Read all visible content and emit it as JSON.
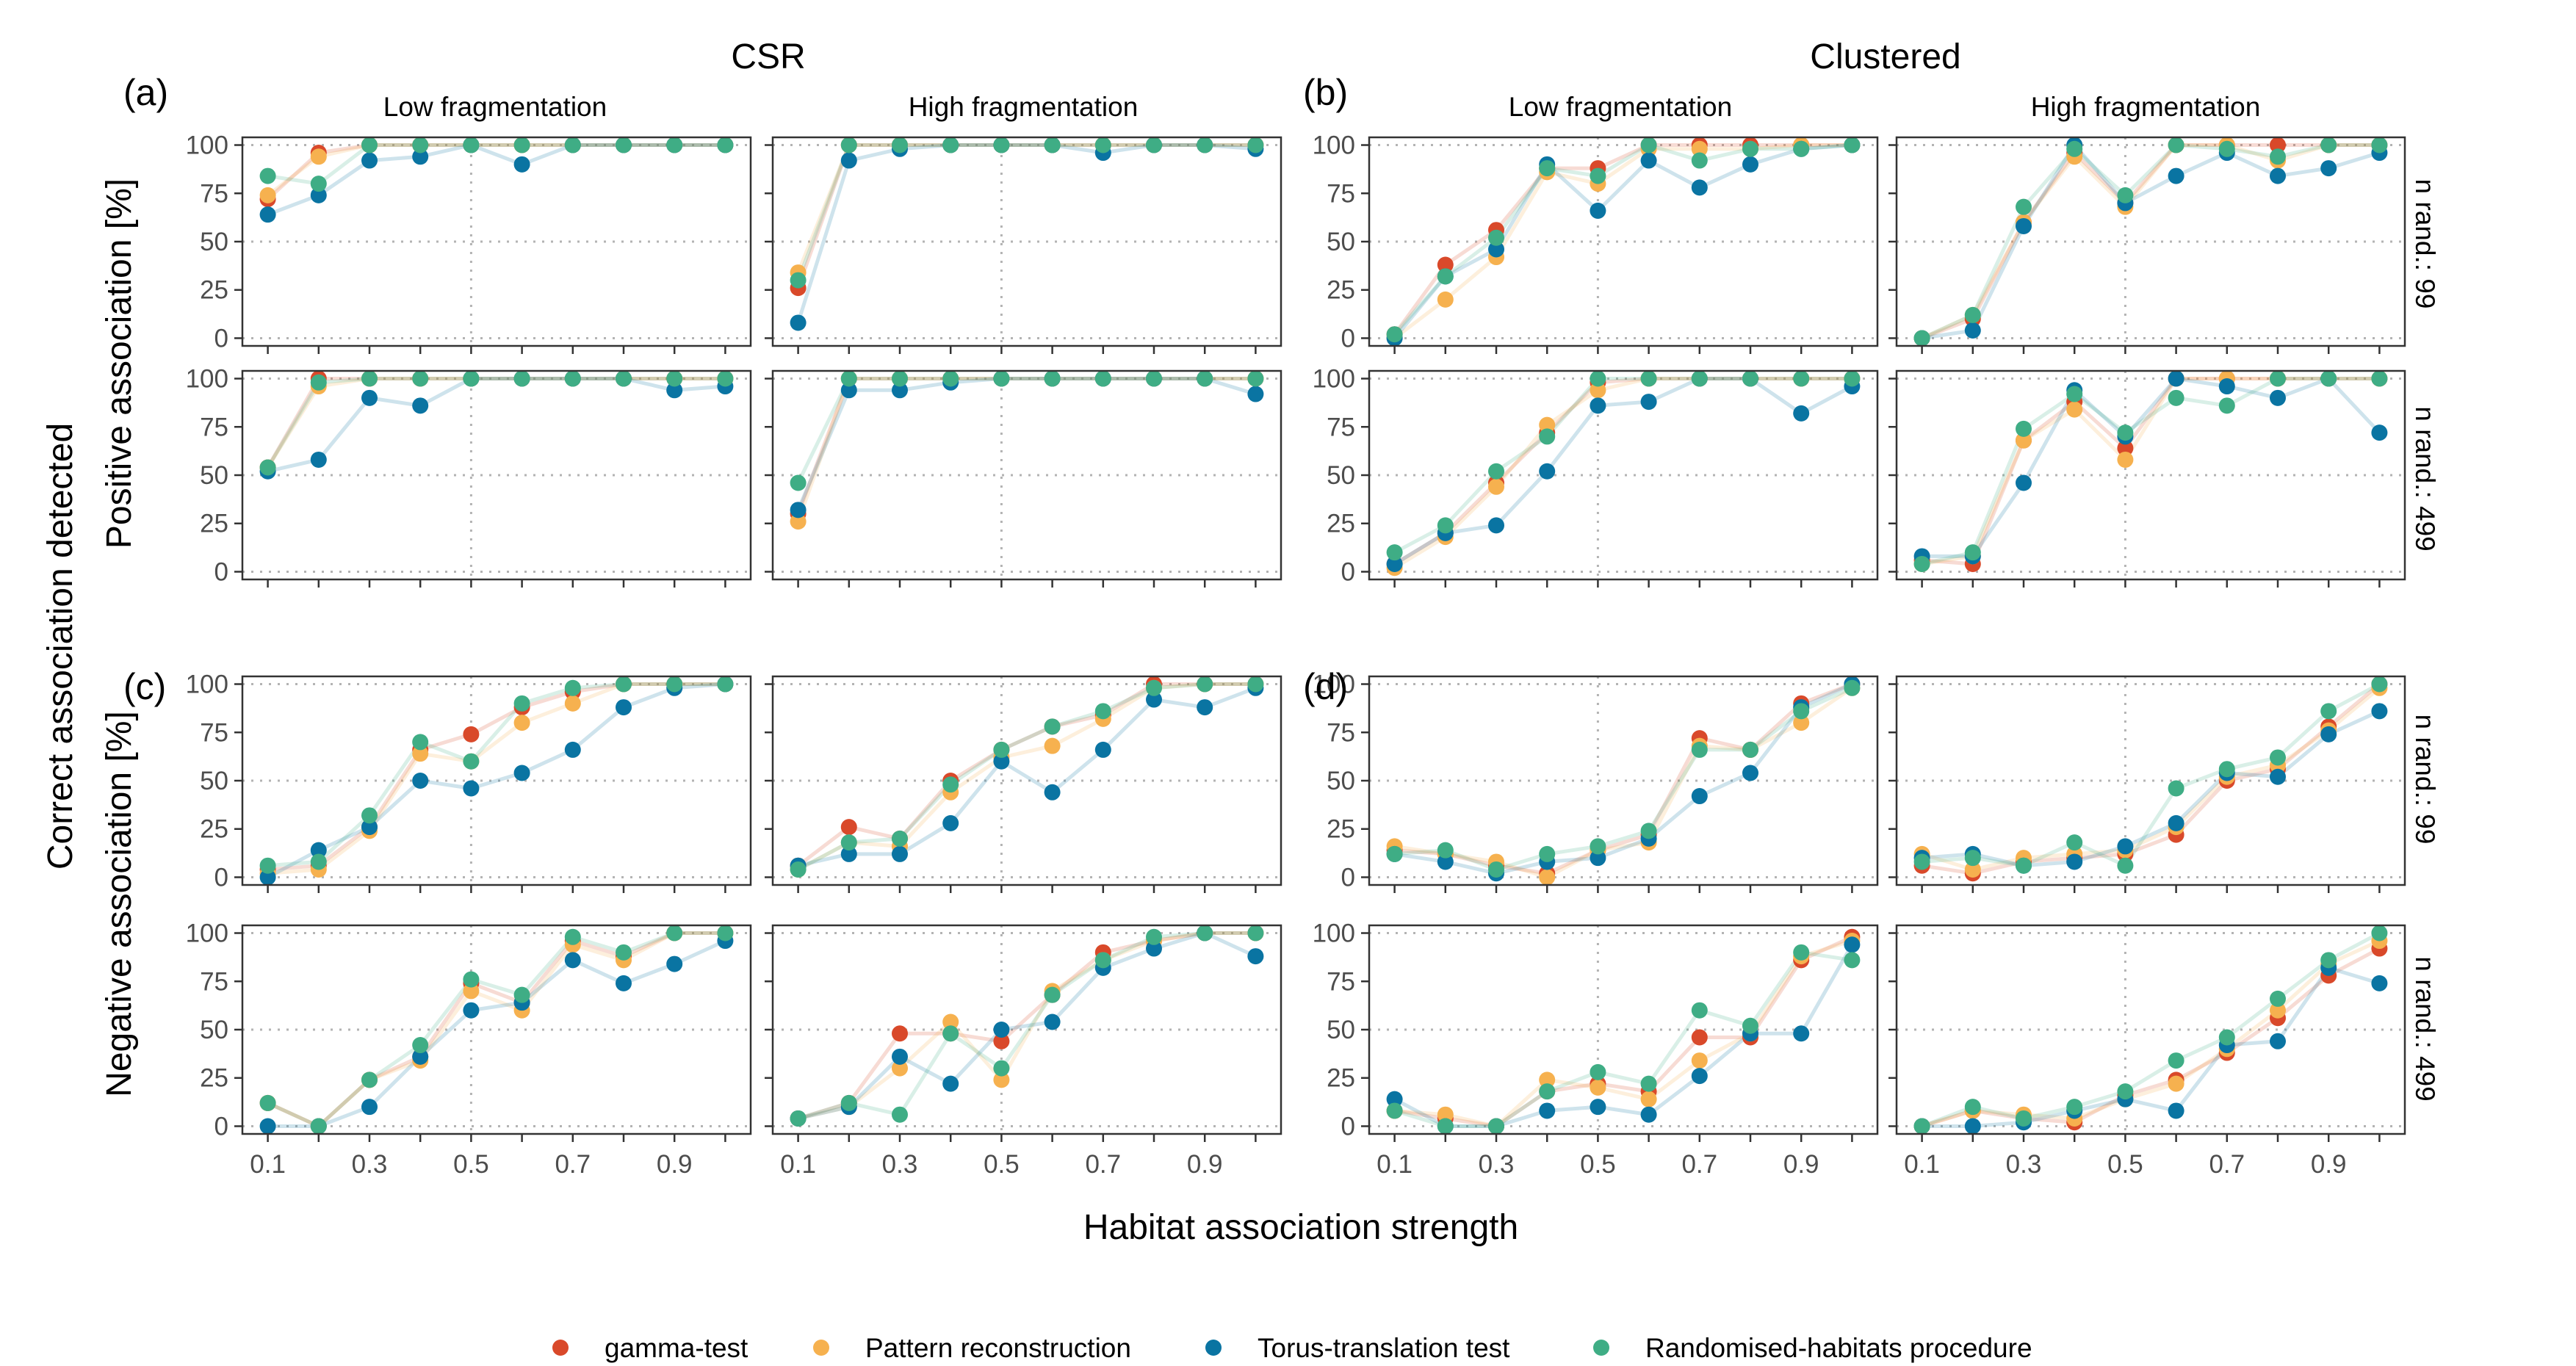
{
  "figure": {
    "xlabel": "Habitat association strength",
    "ylabel_outer": "Correct association detected",
    "col_groups": [
      "CSR",
      "Clustered"
    ],
    "col_titles": [
      "Low fragmentation",
      "High fragmentation",
      "Low fragmentation",
      "High fragmentation"
    ],
    "row_group_labels": [
      "Positive association [%]",
      "Negative association [%]"
    ],
    "strip_labels": [
      "n rand.: 99",
      "n rand.: 499",
      "n rand.: 99",
      "n rand.: 499"
    ],
    "panel_tags": [
      "(a)",
      "(b)",
      "(c)",
      "(d)"
    ],
    "x_ticks": [
      "0.1",
      "0.3",
      "0.5",
      "0.7",
      "0.9"
    ],
    "y_ticks": [
      "0",
      "25",
      "50",
      "75",
      "100"
    ],
    "legend": [
      {
        "label": "gamma-test",
        "color": "#D9492A"
      },
      {
        "label": "Pattern reconstruction",
        "color": "#F6B14F"
      },
      {
        "label": "Torus-translation test",
        "color": "#0A74A2"
      },
      {
        "label": "Randomised-habitats procedure",
        "color": "#3FAD85"
      }
    ]
  },
  "chart_data": {
    "type": "scatter",
    "x": [
      0.1,
      0.2,
      0.3,
      0.4,
      0.5,
      0.6,
      0.7,
      0.8,
      0.9,
      1.0
    ],
    "xlim": [
      0.05,
      1.05
    ],
    "ylim": [
      -4,
      104
    ],
    "grid": "dotted at y=0,50,100 and x=0.5",
    "legend_position": "bottom",
    "series_names": [
      "gamma-test",
      "Pattern reconstruction",
      "Torus-translation test",
      "Randomised-habitats procedure"
    ],
    "panels": [
      {
        "row": 0,
        "col": 0,
        "association": "Positive association [%]",
        "n_rand": "n rand.: 99",
        "pattern": "CSR",
        "fragmentation": "Low fragmentation",
        "series": [
          [
            72,
            96,
            100,
            100,
            100,
            100,
            100,
            100,
            100,
            100
          ],
          [
            74,
            94,
            100,
            100,
            100,
            100,
            100,
            100,
            100,
            100
          ],
          [
            64,
            74,
            92,
            94,
            100,
            90,
            100,
            100,
            100,
            100
          ],
          [
            84,
            80,
            100,
            100,
            100,
            100,
            100,
            100,
            100,
            100
          ]
        ]
      },
      {
        "row": 0,
        "col": 1,
        "association": "Positive association [%]",
        "n_rand": "n rand.: 99",
        "pattern": "CSR",
        "fragmentation": "High fragmentation",
        "series": [
          [
            26,
            100,
            100,
            100,
            100,
            100,
            100,
            100,
            100,
            100
          ],
          [
            34,
            100,
            100,
            100,
            100,
            100,
            100,
            100,
            100,
            100
          ],
          [
            8,
            92,
            98,
            100,
            100,
            100,
            96,
            100,
            100,
            98
          ],
          [
            30,
            100,
            100,
            100,
            100,
            100,
            100,
            100,
            100,
            100
          ]
        ]
      },
      {
        "row": 0,
        "col": 2,
        "association": "Positive association [%]",
        "n_rand": "n rand.: 99",
        "pattern": "Clustered",
        "fragmentation": "Low fragmentation",
        "series": [
          [
            2,
            38,
            56,
            88,
            88,
            100,
            100,
            100,
            100,
            100
          ],
          [
            0,
            20,
            42,
            86,
            80,
            98,
            98,
            98,
            100,
            100
          ],
          [
            0,
            32,
            46,
            90,
            66,
            92,
            78,
            90,
            98,
            100
          ],
          [
            2,
            32,
            52,
            88,
            84,
            100,
            92,
            98,
            98,
            100
          ]
        ]
      },
      {
        "row": 0,
        "col": 3,
        "association": "Positive association [%]",
        "n_rand": "n rand.: 99",
        "pattern": "Clustered",
        "fragmentation": "High fragmentation",
        "series": [
          [
            0,
            10,
            60,
            96,
            70,
            100,
            100,
            100,
            100,
            100
          ],
          [
            0,
            12,
            60,
            94,
            68,
            100,
            100,
            92,
            100,
            100
          ],
          [
            0,
            4,
            58,
            100,
            70,
            84,
            96,
            84,
            88,
            96
          ],
          [
            0,
            12,
            68,
            98,
            74,
            100,
            98,
            94,
            100,
            100
          ]
        ]
      },
      {
        "row": 1,
        "col": 0,
        "association": "Positive association [%]",
        "n_rand": "n rand.: 499",
        "pattern": "CSR",
        "fragmentation": "Low fragmentation",
        "series": [
          [
            54,
            100,
            100,
            100,
            100,
            100,
            100,
            100,
            100,
            100
          ],
          [
            54,
            96,
            100,
            100,
            100,
            100,
            100,
            100,
            100,
            100
          ],
          [
            52,
            58,
            90,
            86,
            100,
            100,
            100,
            100,
            94,
            96
          ],
          [
            54,
            98,
            100,
            100,
            100,
            100,
            100,
            100,
            100,
            100
          ]
        ]
      },
      {
        "row": 1,
        "col": 1,
        "association": "Positive association [%]",
        "n_rand": "n rand.: 499",
        "pattern": "CSR",
        "fragmentation": "High fragmentation",
        "series": [
          [
            30,
            100,
            100,
            100,
            100,
            100,
            100,
            100,
            100,
            100
          ],
          [
            26,
            100,
            100,
            100,
            100,
            100,
            100,
            100,
            100,
            100
          ],
          [
            32,
            94,
            94,
            98,
            100,
            100,
            100,
            100,
            100,
            92
          ],
          [
            46,
            100,
            100,
            100,
            100,
            100,
            100,
            100,
            100,
            100
          ]
        ]
      },
      {
        "row": 1,
        "col": 2,
        "association": "Positive association [%]",
        "n_rand": "n rand.: 499",
        "pattern": "Clustered",
        "fragmentation": "Low fragmentation",
        "series": [
          [
            4,
            20,
            46,
            72,
            98,
            100,
            100,
            100,
            100,
            100
          ],
          [
            2,
            18,
            44,
            76,
            94,
            100,
            100,
            100,
            100,
            100
          ],
          [
            4,
            20,
            24,
            52,
            86,
            88,
            100,
            100,
            82,
            96
          ],
          [
            10,
            24,
            52,
            70,
            100,
            100,
            100,
            100,
            100,
            100
          ]
        ]
      },
      {
        "row": 1,
        "col": 3,
        "association": "Positive association [%]",
        "n_rand": "n rand.: 499",
        "pattern": "Clustered",
        "fragmentation": "High fragmentation",
        "series": [
          [
            6,
            4,
            68,
            88,
            64,
            100,
            100,
            100,
            100,
            100
          ],
          [
            4,
            8,
            68,
            84,
            58,
            100,
            100,
            100,
            100,
            100
          ],
          [
            8,
            8,
            46,
            94,
            70,
            100,
            96,
            90,
            100,
            72
          ],
          [
            4,
            10,
            74,
            92,
            72,
            90,
            86,
            100,
            100,
            100
          ]
        ]
      },
      {
        "row": 2,
        "col": 0,
        "association": "Negative association [%]",
        "n_rand": "n rand.: 99",
        "pattern": "CSR",
        "fragmentation": "Low fragmentation",
        "series": [
          [
            4,
            6,
            26,
            66,
            74,
            88,
            96,
            100,
            100,
            100
          ],
          [
            2,
            4,
            24,
            64,
            60,
            80,
            90,
            100,
            100,
            100
          ],
          [
            0,
            14,
            26,
            50,
            46,
            54,
            66,
            88,
            98,
            100
          ],
          [
            6,
            8,
            32,
            70,
            60,
            90,
            98,
            100,
            100,
            100
          ]
        ]
      },
      {
        "row": 2,
        "col": 1,
        "association": "Negative association [%]",
        "n_rand": "n rand.: 99",
        "pattern": "CSR",
        "fragmentation": "High fragmentation",
        "series": [
          [
            6,
            26,
            20,
            50,
            66,
            78,
            84,
            100,
            100,
            100
          ],
          [
            4,
            18,
            16,
            44,
            62,
            68,
            82,
            98,
            100,
            100
          ],
          [
            6,
            12,
            12,
            28,
            60,
            44,
            66,
            92,
            88,
            98
          ],
          [
            4,
            18,
            20,
            48,
            66,
            78,
            86,
            98,
            100,
            100
          ]
        ]
      },
      {
        "row": 2,
        "col": 2,
        "association": "Negative association [%]",
        "n_rand": "n rand.: 99",
        "pattern": "Clustered",
        "fragmentation": "Low fragmentation",
        "series": [
          [
            14,
            12,
            6,
            2,
            14,
            22,
            72,
            66,
            90,
            100
          ],
          [
            16,
            12,
            8,
            0,
            14,
            18,
            68,
            66,
            80,
            98
          ],
          [
            12,
            8,
            2,
            8,
            10,
            20,
            42,
            54,
            88,
            100
          ],
          [
            12,
            14,
            4,
            12,
            16,
            24,
            66,
            66,
            86,
            98
          ]
        ]
      },
      {
        "row": 2,
        "col": 3,
        "association": "Negative association [%]",
        "n_rand": "n rand.: 99",
        "pattern": "Clustered",
        "fragmentation": "High fragmentation",
        "series": [
          [
            6,
            2,
            8,
            10,
            12,
            22,
            50,
            56,
            78,
            100
          ],
          [
            12,
            4,
            10,
            12,
            14,
            26,
            52,
            58,
            76,
            98
          ],
          [
            10,
            12,
            6,
            8,
            16,
            28,
            54,
            52,
            74,
            86
          ],
          [
            8,
            10,
            6,
            18,
            6,
            46,
            56,
            62,
            86,
            100
          ]
        ]
      },
      {
        "row": 3,
        "col": 0,
        "association": "Negative association [%]",
        "n_rand": "n rand.: 499",
        "pattern": "CSR",
        "fragmentation": "Low fragmentation",
        "series": [
          [
            12,
            0,
            24,
            36,
            74,
            64,
            96,
            88,
            100,
            100
          ],
          [
            12,
            0,
            24,
            34,
            70,
            60,
            94,
            86,
            100,
            100
          ],
          [
            0,
            0,
            10,
            36,
            60,
            64,
            86,
            74,
            84,
            96
          ],
          [
            12,
            0,
            24,
            42,
            76,
            68,
            98,
            90,
            100,
            100
          ]
        ]
      },
      {
        "row": 3,
        "col": 1,
        "association": "Negative association [%]",
        "n_rand": "n rand.: 499",
        "pattern": "CSR",
        "fragmentation": "High fragmentation",
        "series": [
          [
            4,
            12,
            48,
            48,
            44,
            68,
            90,
            96,
            100,
            100
          ],
          [
            4,
            10,
            30,
            54,
            24,
            70,
            86,
            96,
            100,
            100
          ],
          [
            4,
            10,
            36,
            22,
            50,
            54,
            82,
            92,
            100,
            88
          ],
          [
            4,
            12,
            6,
            48,
            30,
            68,
            86,
            98,
            100,
            100
          ]
        ]
      },
      {
        "row": 3,
        "col": 2,
        "association": "Negative association [%]",
        "n_rand": "n rand.: 499",
        "pattern": "Clustered",
        "fragmentation": "Low fragmentation",
        "series": [
          [
            8,
            4,
            0,
            18,
            22,
            18,
            46,
            46,
            86,
            98
          ],
          [
            8,
            6,
            0,
            24,
            20,
            14,
            34,
            48,
            88,
            96
          ],
          [
            14,
            0,
            0,
            8,
            10,
            6,
            26,
            48,
            48,
            94
          ],
          [
            8,
            0,
            0,
            18,
            28,
            22,
            60,
            52,
            90,
            86
          ]
        ]
      },
      {
        "row": 3,
        "col": 3,
        "association": "Negative association [%]",
        "n_rand": "n rand.: 499",
        "pattern": "Clustered",
        "fragmentation": "High fragmentation",
        "series": [
          [
            0,
            8,
            4,
            2,
            16,
            24,
            38,
            56,
            78,
            92
          ],
          [
            0,
            8,
            6,
            4,
            14,
            22,
            40,
            60,
            84,
            96
          ],
          [
            0,
            0,
            2,
            8,
            14,
            8,
            42,
            44,
            82,
            74
          ],
          [
            0,
            10,
            4,
            10,
            18,
            34,
            46,
            66,
            86,
            100
          ]
        ]
      }
    ]
  }
}
